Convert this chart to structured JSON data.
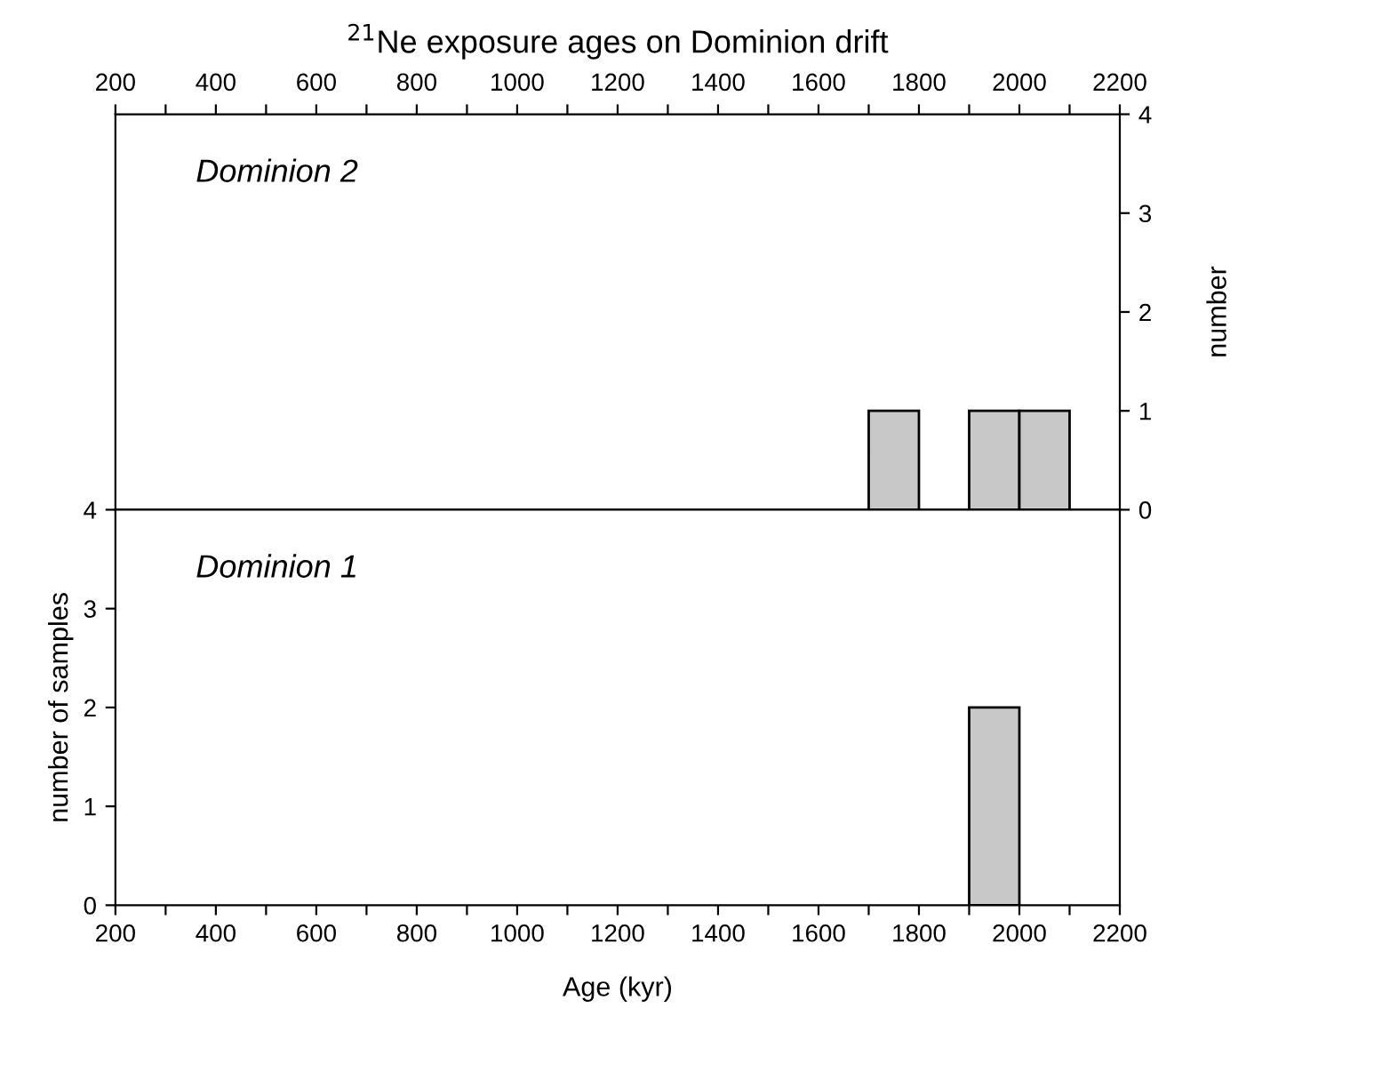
{
  "chart_data": [
    {
      "type": "histogram",
      "title": "$^{21}$Ne exposure ages on Dominion drift",
      "ylabel": "number",
      "annotations": [
        "Dominion 2"
      ],
      "bins": [
        1700,
        1800,
        1900,
        2000,
        2100
      ],
      "values": [
        1,
        0,
        1,
        1
      ],
      "color": "#c8c8c8",
      "xlim": [
        200,
        2200
      ],
      "xticks": [
        200,
        {
          "value": 300,
          "label": null
        },
        400,
        {
          "value": 500,
          "label": null
        },
        600,
        {
          "value": 700,
          "label": null
        },
        800,
        {
          "value": 900,
          "label": null
        },
        1000,
        {
          "value": 1100,
          "label": null
        },
        1200,
        {
          "value": 1300,
          "label": null
        },
        1400,
        {
          "value": 1500,
          "label": null
        },
        1600,
        {
          "value": 1700,
          "label": null
        },
        1800,
        {
          "value": 1900,
          "label": null
        },
        2000,
        {
          "value": 2100,
          "label": null
        },
        2200
      ],
      "ylim": [
        0,
        4
      ],
      "yticks": [
        0,
        1,
        2,
        3,
        4
      ],
      "grid": false
    },
    {
      "type": "histogram",
      "xlabel": "Age (kyr)",
      "ylabel": "number of samples",
      "annotations": [
        "Dominion 1"
      ],
      "bins": [
        1900,
        2000
      ],
      "values": [
        2
      ],
      "color": "#c8c8c8",
      "xlim": [
        200,
        2200
      ],
      "xticks": [
        200,
        {
          "value": 300,
          "label": null
        },
        400,
        {
          "value": 500,
          "label": null
        },
        600,
        {
          "value": 700,
          "label": null
        },
        800,
        {
          "value": 900,
          "label": null
        },
        1000,
        {
          "value": 1100,
          "label": null
        },
        1200,
        {
          "value": 1300,
          "label": null
        },
        1400,
        {
          "value": 1500,
          "label": null
        },
        1600,
        {
          "value": 1700,
          "label": null
        },
        1800,
        {
          "value": 1900,
          "label": null
        },
        2000,
        {
          "value": 2100,
          "label": null
        },
        2200
      ],
      "ylim": [
        0,
        4
      ],
      "yticks": [
        0,
        1,
        2,
        3,
        4
      ],
      "grid": false
    }
  ]
}
